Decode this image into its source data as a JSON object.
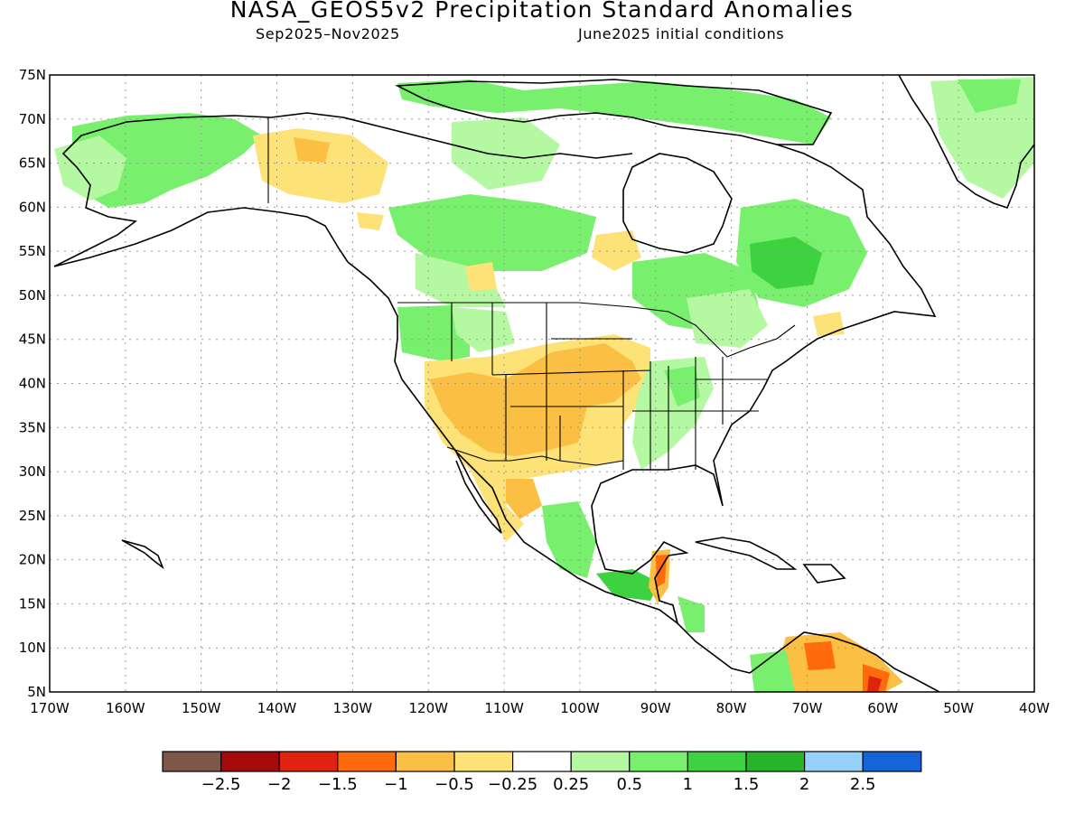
{
  "title": "NASA_GEOS5v2 Precipitation Standard Anomalies",
  "period": "Sep2025–Nov2025",
  "initial_conditions": "June2025 initial conditions",
  "map": {
    "lat_labels": [
      "75N",
      "70N",
      "65N",
      "60N",
      "55N",
      "50N",
      "45N",
      "40N",
      "35N",
      "30N",
      "25N",
      "20N",
      "15N",
      "10N",
      "5N"
    ],
    "lon_labels": [
      "170W",
      "160W",
      "150W",
      "140W",
      "130W",
      "120W",
      "110W",
      "100W",
      "90W",
      "80W",
      "70W",
      "60W",
      "50W",
      "40W"
    ],
    "lat_range": [
      5,
      75
    ],
    "lon_range": [
      -170,
      -40
    ],
    "gridlines": "dotted"
  },
  "colorbar": {
    "colors": [
      "#7f5749",
      "#a50a0a",
      "#e0230f",
      "#ff6a0c",
      "#fbbf43",
      "#fde277",
      "#ffffff",
      "#b4f9a2",
      "#78ef6d",
      "#3ed140",
      "#28b42a",
      "#95d1f8",
      "#1564d9"
    ],
    "labels": [
      "−2.5",
      "−2",
      "−1.5",
      "−1",
      "−0.5",
      "−0.25",
      "0.25",
      "0.5",
      "1",
      "1.5",
      "2",
      "2.5"
    ]
  },
  "anomaly_colors": {
    "dry_weak": "#fde277",
    "dry": "#fbbf43",
    "dry_strong": "#ff6a0c",
    "dry_severe": "#e0230f",
    "wet_weak": "#b4f9a2",
    "wet": "#78ef6d",
    "wet_strong": "#3ed140",
    "wet_severe": "#28b42a"
  }
}
